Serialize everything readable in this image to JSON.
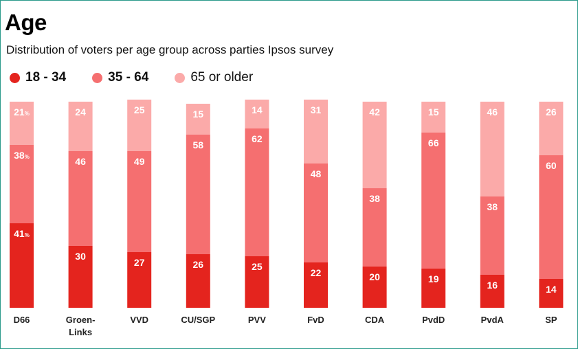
{
  "chart_data": {
    "type": "bar",
    "stacked": true,
    "title": "Age",
    "subtitle": "Distribution of voters per age group across parties Ipsos survey",
    "categories": [
      "D66",
      "Groen-\nLinks",
      "VVD",
      "CU/SGP",
      "PVV",
      "FvD",
      "CDA",
      "PvdD",
      "PvdA",
      "SP"
    ],
    "series": [
      {
        "name": "18 - 34",
        "color": "#e4241e",
        "values": [
          41,
          30,
          27,
          26,
          25,
          22,
          20,
          19,
          16,
          14
        ]
      },
      {
        "name": "35 - 64",
        "color": "#f56f70",
        "values": [
          38,
          46,
          49,
          58,
          62,
          48,
          38,
          66,
          38,
          60
        ]
      },
      {
        "name": "65 or older",
        "color": "#fbaaa9",
        "values": [
          21,
          24,
          25,
          15,
          14,
          31,
          42,
          15,
          46,
          26
        ]
      }
    ],
    "percent_suffix_first_bar": true,
    "ylim": [
      0,
      100
    ],
    "legend_position": "top",
    "grid": false
  }
}
